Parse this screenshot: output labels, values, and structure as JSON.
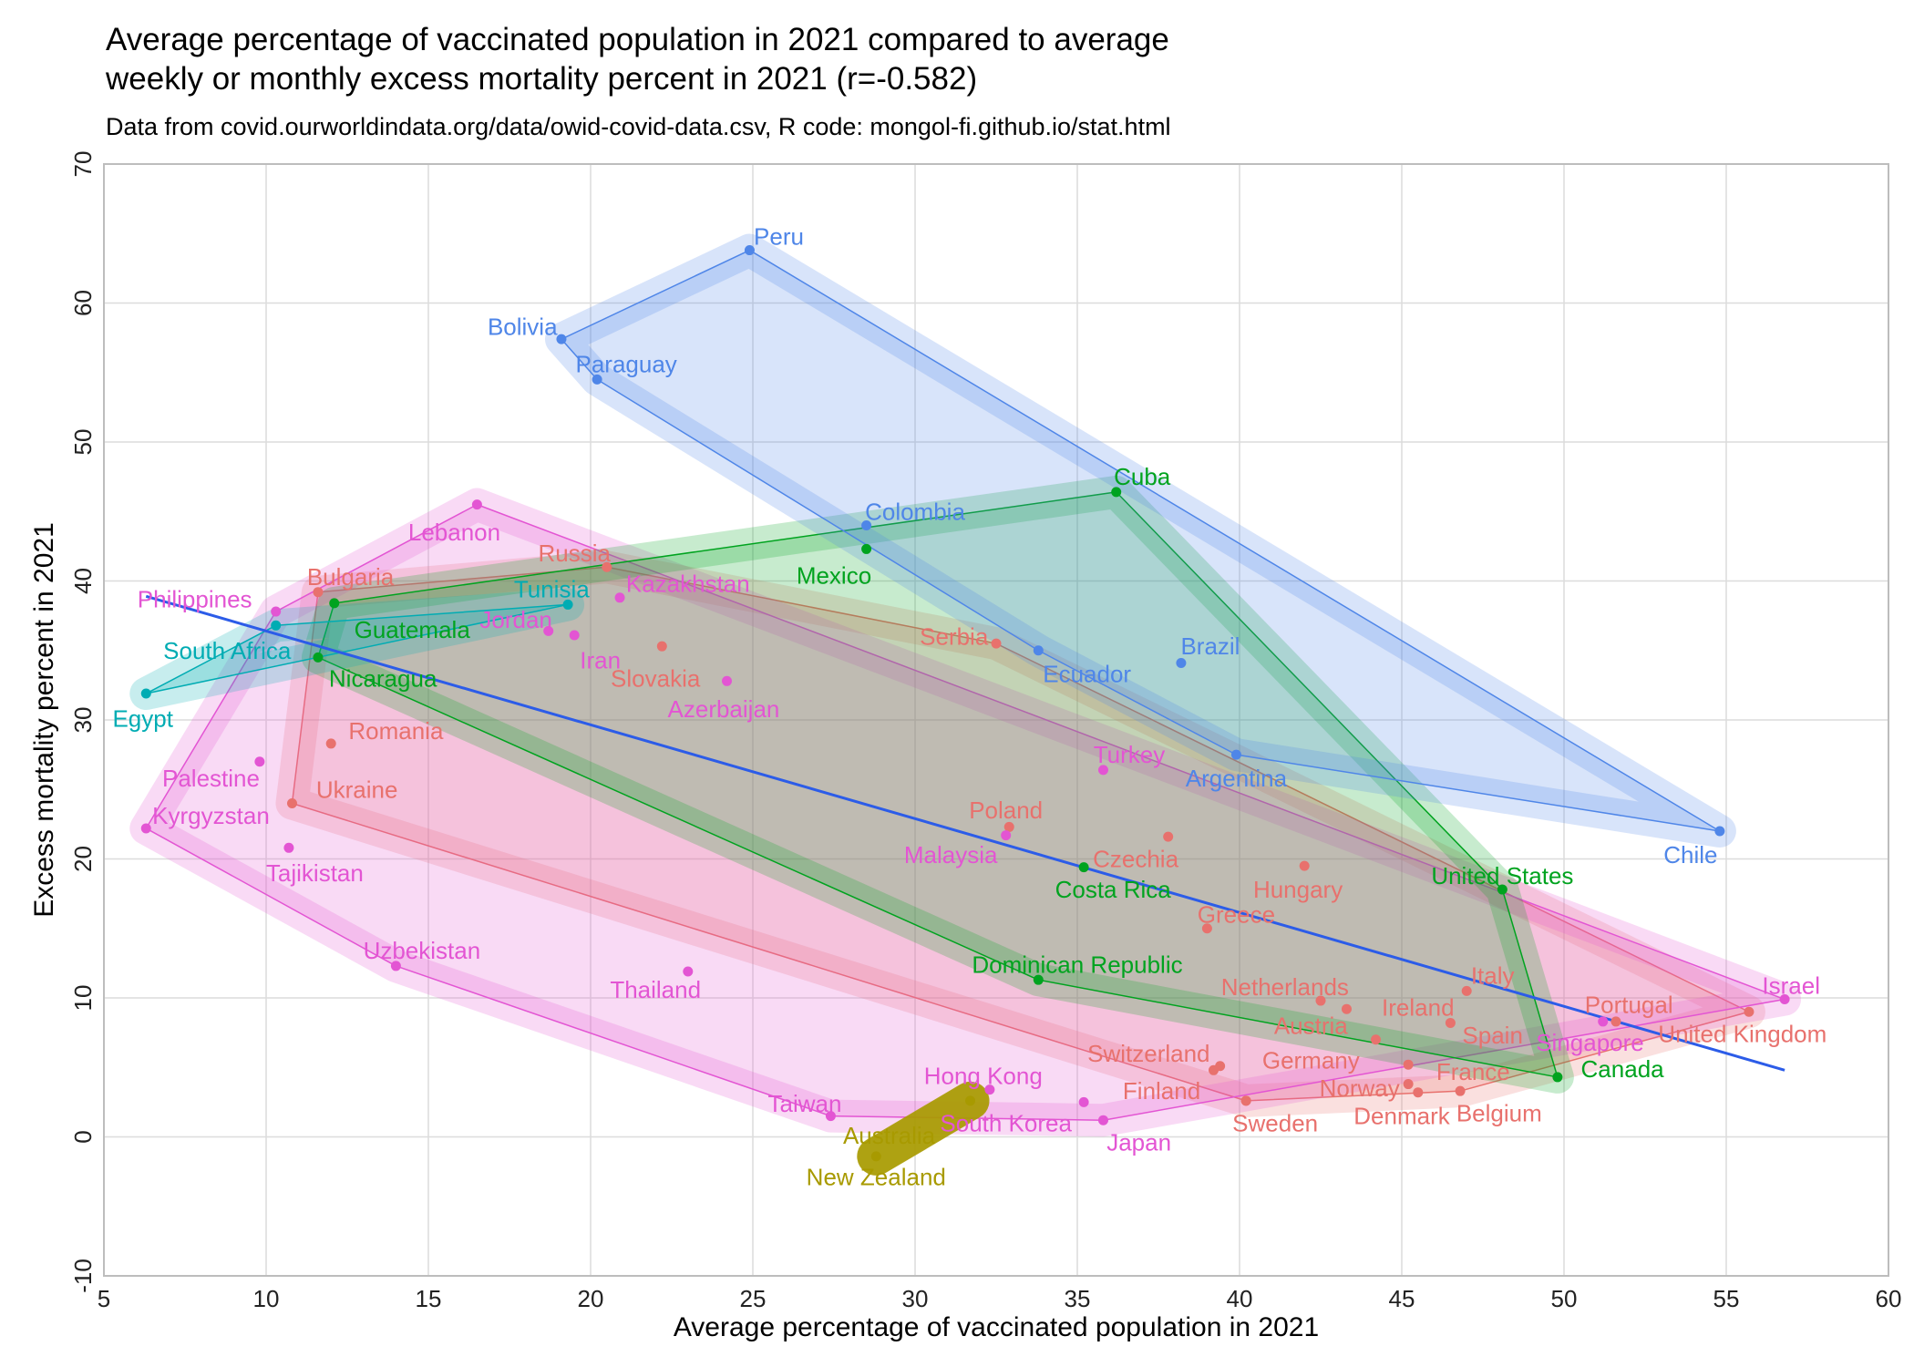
{
  "chart_data": {
    "type": "scatter",
    "title_line1": "Average percentage of vaccinated population in 2021 compared to average",
    "title_line2": "weekly or monthly excess mortality percent in 2021 (r=-0.582)",
    "subtitle": "Data from covid.ourworldindata.org/data/owid-covid-data.csv, R code: mongol-fi.github.io/stat.html",
    "xlabel": "Average percentage of vaccinated population in 2021",
    "ylabel": "Excess mortality percent in 2021",
    "xlim": [
      5,
      60
    ],
    "ylim": [
      -10,
      70
    ],
    "xticks": [
      5,
      10,
      15,
      20,
      25,
      30,
      35,
      40,
      45,
      50,
      55,
      60
    ],
    "yticks": [
      -10,
      0,
      10,
      20,
      30,
      40,
      50,
      60,
      70
    ],
    "grid": true,
    "groups": [
      {
        "color": "#e8716d",
        "points": [
          {
            "name": "Bulgaria",
            "x": 11.6,
            "y": 39.2,
            "lx": 12.6,
            "ly": 40.3
          },
          {
            "name": "Russia",
            "x": 20.5,
            "y": 41.0,
            "lx": 19.5,
            "ly": 42.0
          },
          {
            "name": "Serbia",
            "x": 32.5,
            "y": 35.5,
            "lx": 31.2,
            "ly": 36.0
          },
          {
            "name": "Slovakia",
            "x": 22.2,
            "y": 35.3,
            "lx": 22.0,
            "ly": 33.0
          },
          {
            "name": "Romania",
            "x": 12.0,
            "y": 28.3,
            "lx": 14.0,
            "ly": 29.2
          },
          {
            "name": "Ukraine",
            "x": 10.8,
            "y": 24.0,
            "lx": 12.8,
            "ly": 25.0
          },
          {
            "name": "Poland",
            "x": 32.9,
            "y": 22.3,
            "lx": 32.8,
            "ly": 23.5
          },
          {
            "name": "Czechia",
            "x": 37.8,
            "y": 21.6,
            "lx": 36.8,
            "ly": 20.0
          },
          {
            "name": "Hungary",
            "x": 42.0,
            "y": 19.5,
            "lx": 41.8,
            "ly": 17.8
          },
          {
            "name": "Greece",
            "x": 39.0,
            "y": 15.0,
            "lx": 39.9,
            "ly": 16.0
          },
          {
            "name": "Netherlands",
            "x": 42.5,
            "y": 9.8,
            "lx": 41.4,
            "ly": 10.8
          },
          {
            "name": "Italy",
            "x": 47.0,
            "y": 10.5,
            "lx": 47.8,
            "ly": 11.6
          },
          {
            "name": "Ireland",
            "x": 43.3,
            "y": 9.2,
            "lx": 45.5,
            "ly": 9.3
          },
          {
            "name": "Austria",
            "x": 44.2,
            "y": 7.0,
            "lx": 42.2,
            "ly": 8.0
          },
          {
            "name": "Spain",
            "x": 46.5,
            "y": 8.2,
            "lx": 47.8,
            "ly": 7.3
          },
          {
            "name": "Switzerland",
            "x": 39.4,
            "y": 5.1,
            "lx": 37.2,
            "ly": 6.0
          },
          {
            "name": "Germany",
            "x": 39.2,
            "y": 4.8,
            "lx": 42.2,
            "ly": 5.5
          },
          {
            "name": "Finland",
            "x": 40.2,
            "y": 2.6,
            "lx": 37.6,
            "ly": 3.3
          },
          {
            "name": "Sweden",
            "x": 40.2,
            "y": 2.6,
            "lx": 41.1,
            "ly": 1.0
          },
          {
            "name": "Norway",
            "x": 45.2,
            "y": 3.8,
            "lx": 43.7,
            "ly": 3.5
          },
          {
            "name": "France",
            "x": 45.2,
            "y": 5.2,
            "lx": 47.2,
            "ly": 4.7
          },
          {
            "name": "Denmark",
            "x": 45.5,
            "y": 3.2,
            "lx": 45.0,
            "ly": 1.5
          },
          {
            "name": "Belgium",
            "x": 46.8,
            "y": 3.3,
            "lx": 48.0,
            "ly": 1.7
          },
          {
            "name": "Portugal",
            "x": 51.6,
            "y": 8.3,
            "lx": 52.0,
            "ly": 9.5
          },
          {
            "name": "United Kingdom",
            "x": 55.7,
            "y": 9.0,
            "lx": 55.5,
            "ly": 7.4
          }
        ]
      },
      {
        "color": "#e355d3",
        "points": [
          {
            "name": "Lebanon",
            "x": 16.5,
            "y": 45.5,
            "lx": 15.8,
            "ly": 43.5
          },
          {
            "name": "Kazakhstan",
            "x": 20.9,
            "y": 38.8,
            "lx": 23.0,
            "ly": 39.8
          },
          {
            "name": "Philippines",
            "x": 10.3,
            "y": 37.8,
            "lx": 7.8,
            "ly": 38.7
          },
          {
            "name": "Jordan",
            "x": 18.7,
            "y": 36.4,
            "lx": 17.7,
            "ly": 37.2
          },
          {
            "name": "Iran",
            "x": 19.5,
            "y": 36.1,
            "lx": 20.3,
            "ly": 34.3
          },
          {
            "name": "Azerbaijan",
            "x": 24.2,
            "y": 32.8,
            "lx": 24.1,
            "ly": 30.8
          },
          {
            "name": "Palestine",
            "x": 9.8,
            "y": 27.0,
            "lx": 8.3,
            "ly": 25.8
          },
          {
            "name": "Kyrgyzstan",
            "x": 6.3,
            "y": 22.2,
            "lx": 8.3,
            "ly": 23.1
          },
          {
            "name": "Tajikistan",
            "x": 10.7,
            "y": 20.8,
            "lx": 11.5,
            "ly": 19.0
          },
          {
            "name": "Turkey",
            "x": 35.8,
            "y": 26.4,
            "lx": 36.6,
            "ly": 27.5
          },
          {
            "name": "Malaysia",
            "x": 32.8,
            "y": 21.7,
            "lx": 31.1,
            "ly": 20.3
          },
          {
            "name": "Uzbekistan",
            "x": 14.0,
            "y": 12.3,
            "lx": 14.8,
            "ly": 13.4
          },
          {
            "name": "Thailand",
            "x": 23.0,
            "y": 11.9,
            "lx": 22.0,
            "ly": 10.6
          },
          {
            "name": "Hong Kong",
            "x": 32.3,
            "y": 3.4,
            "lx": 32.1,
            "ly": 4.4
          },
          {
            "name": "Taiwan",
            "x": 27.4,
            "y": 1.5,
            "lx": 26.6,
            "ly": 2.4
          },
          {
            "name": "South Korea",
            "x": 35.2,
            "y": 2.5,
            "lx": 32.8,
            "ly": 1.0
          },
          {
            "name": "Japan",
            "x": 35.8,
            "y": 1.2,
            "lx": 36.9,
            "ly": -0.4
          },
          {
            "name": "Israel",
            "x": 56.8,
            "y": 9.9,
            "lx": 57.0,
            "ly": 10.9
          },
          {
            "name": "Singapore",
            "x": 51.2,
            "y": 8.3,
            "lx": 50.8,
            "ly": 6.8
          }
        ]
      },
      {
        "color": "#00a31f",
        "points": [
          {
            "name": "Cuba",
            "x": 36.2,
            "y": 46.4,
            "lx": 37.0,
            "ly": 47.5
          },
          {
            "name": "Mexico",
            "x": 28.5,
            "y": 42.3,
            "lx": 27.5,
            "ly": 40.4
          },
          {
            "name": "Guatemala",
            "x": 12.1,
            "y": 38.4,
            "lx": 14.5,
            "ly": 36.5
          },
          {
            "name": "Nicaragua",
            "x": 11.6,
            "y": 34.5,
            "lx": 13.6,
            "ly": 33.0
          },
          {
            "name": "Costa Rica",
            "x": 35.2,
            "y": 19.4,
            "lx": 36.1,
            "ly": 17.8
          },
          {
            "name": "United States",
            "x": 48.1,
            "y": 17.8,
            "lx": 48.1,
            "ly": 18.8
          },
          {
            "name": "Dominican Republic",
            "x": 33.8,
            "y": 11.3,
            "lx": 35.0,
            "ly": 12.4
          },
          {
            "name": "Canada",
            "x": 49.8,
            "y": 4.3,
            "lx": 51.8,
            "ly": 4.9
          }
        ]
      },
      {
        "color": "#00acb3",
        "points": [
          {
            "name": "Tunisia",
            "x": 19.3,
            "y": 38.3,
            "lx": 18.8,
            "ly": 39.4
          },
          {
            "name": "South Africa",
            "x": 10.3,
            "y": 36.8,
            "lx": 8.8,
            "ly": 35.0
          },
          {
            "name": "Egypt",
            "x": 6.3,
            "y": 31.9,
            "lx": 6.2,
            "ly": 30.1
          }
        ]
      },
      {
        "color": "#4f86e8",
        "points": [
          {
            "name": "Peru",
            "x": 24.9,
            "y": 63.8,
            "lx": 25.8,
            "ly": 64.8
          },
          {
            "name": "Bolivia",
            "x": 19.1,
            "y": 57.4,
            "lx": 17.9,
            "ly": 58.3
          },
          {
            "name": "Paraguay",
            "x": 20.2,
            "y": 54.5,
            "lx": 21.1,
            "ly": 55.6
          },
          {
            "name": "Colombia",
            "x": 28.5,
            "y": 44.0,
            "lx": 30.0,
            "ly": 45.0
          },
          {
            "name": "Ecuador",
            "x": 33.8,
            "y": 35.0,
            "lx": 35.3,
            "ly": 33.3
          },
          {
            "name": "Brazil",
            "x": 38.2,
            "y": 34.1,
            "lx": 39.1,
            "ly": 35.3
          },
          {
            "name": "Argentina",
            "x": 39.9,
            "y": 27.5,
            "lx": 39.9,
            "ly": 25.8
          },
          {
            "name": "Chile",
            "x": 54.8,
            "y": 22.0,
            "lx": 53.9,
            "ly": 20.3
          }
        ]
      },
      {
        "color": "#a89a00",
        "points": [
          {
            "name": "Australia",
            "x": 31.7,
            "y": 2.6,
            "lx": 29.2,
            "ly": 0.1
          },
          {
            "name": "New Zealand",
            "x": 28.8,
            "y": -1.4,
            "lx": 28.8,
            "ly": -2.9
          }
        ]
      }
    ],
    "regression_line": {
      "color": "#2c5ce8",
      "points": [
        [
          6.3,
          38.9
        ],
        [
          56.8,
          4.8
        ]
      ]
    }
  }
}
